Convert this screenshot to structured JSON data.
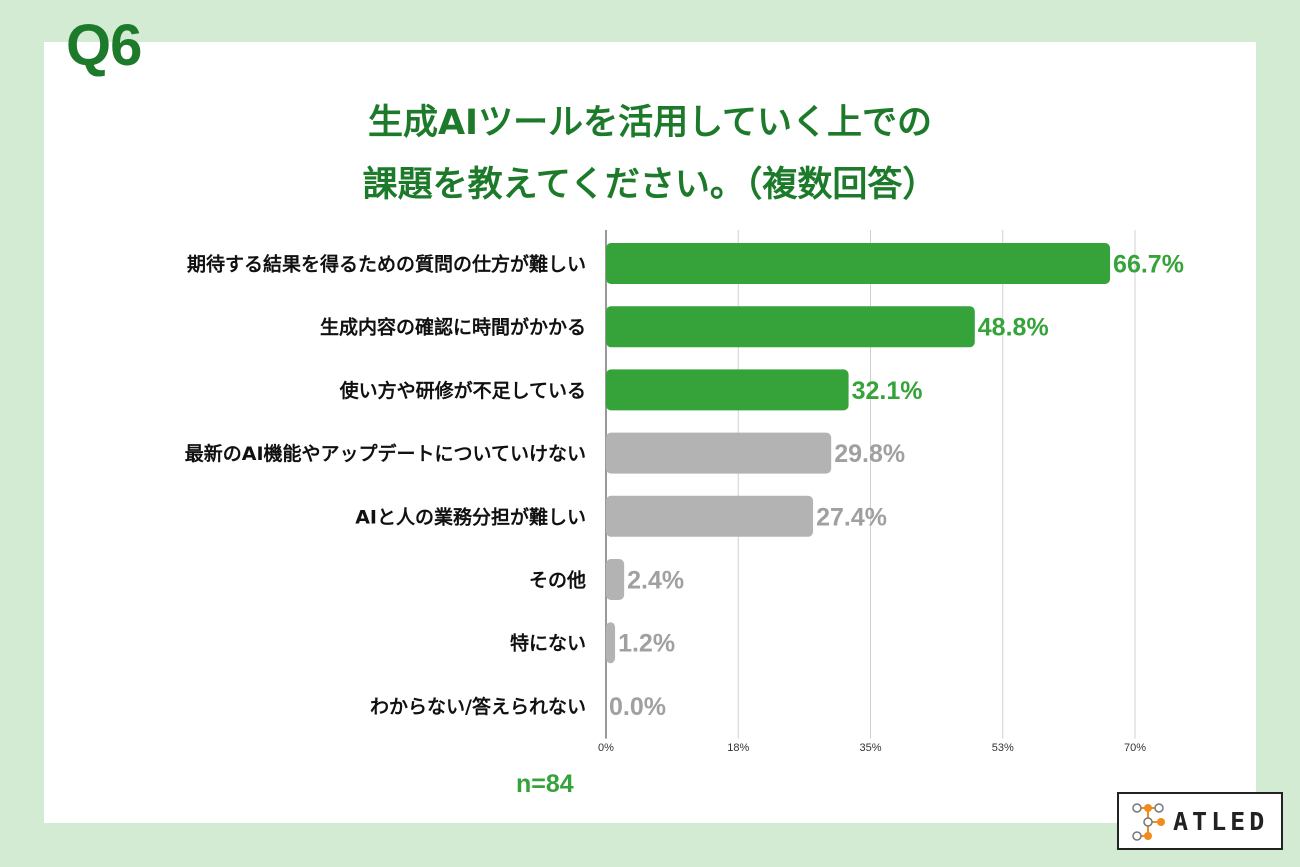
{
  "question_label": "Q6",
  "title_lines": [
    "生成AIツールを活用していく上での",
    "課題を教えてください。（複数回答）"
  ],
  "sample_size": "n=84",
  "logo_text": "ATLED",
  "colors": {
    "background": "#d3ead3",
    "title": "#1d7a2b",
    "highlight_bar": "#35a33a",
    "other_bar": "#b3b3b3",
    "highlight_label": "#35a33a",
    "other_label": "#a0a0a0"
  },
  "chart_data": {
    "type": "bar",
    "orientation": "horizontal",
    "categories": [
      "期待する結果を得るための質問の仕方が難しい",
      "生成内容の確認に時間がかかる",
      "使い方や研修が不足している",
      "最新のAI機能やアップデートについていけない",
      "AIと人の業務分担が難しい",
      "その他",
      "特にない",
      "わからない/答えられない"
    ],
    "values": [
      66.7,
      48.8,
      32.1,
      29.8,
      27.4,
      2.4,
      1.2,
      0.0
    ],
    "value_labels": [
      "66.7%",
      "48.8%",
      "32.1%",
      "29.8%",
      "27.4%",
      "2.4%",
      "1.2%",
      "0.0%"
    ],
    "highlighted": [
      true,
      true,
      true,
      false,
      false,
      false,
      false,
      false
    ],
    "xlim": [
      0,
      70
    ],
    "xticks": [
      0,
      17.5,
      35,
      52.5,
      70
    ],
    "xtick_labels": [
      "0%",
      "18%",
      "35%",
      "53%",
      "70%"
    ],
    "grid": true
  }
}
